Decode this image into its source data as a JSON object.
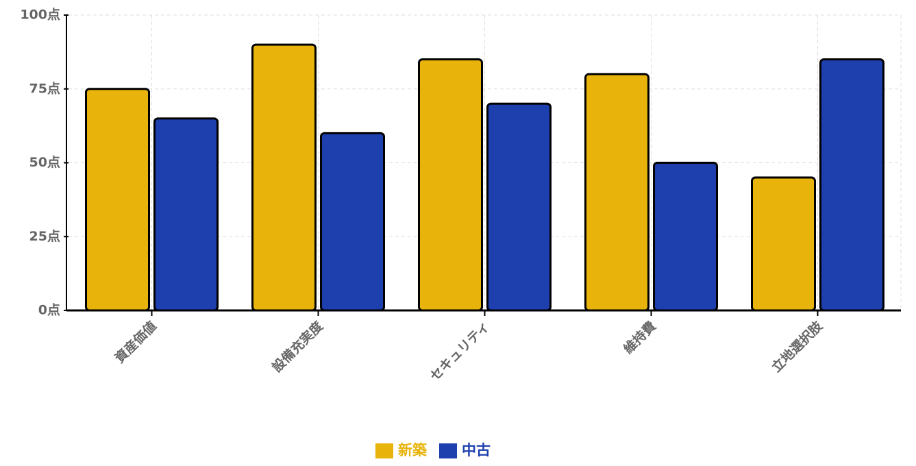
{
  "chart_data": {
    "type": "bar",
    "categories": [
      "資産価値",
      "設備充実度",
      "セキュリティ",
      "維持費",
      "立地選択肢"
    ],
    "series": [
      {
        "name": "新築",
        "color": "#E8B30A",
        "values": [
          75,
          90,
          85,
          80,
          45
        ]
      },
      {
        "name": "中古",
        "color": "#1E40AF",
        "values": [
          65,
          60,
          70,
          50,
          85
        ]
      }
    ],
    "ylim": [
      0,
      100
    ],
    "yticks": [
      {
        "value": 0,
        "label": "0点"
      },
      {
        "value": 25,
        "label": "25点"
      },
      {
        "value": 50,
        "label": "50点"
      },
      {
        "value": 75,
        "label": "75点"
      },
      {
        "value": 100,
        "label": "100点"
      }
    ],
    "grid": true
  }
}
